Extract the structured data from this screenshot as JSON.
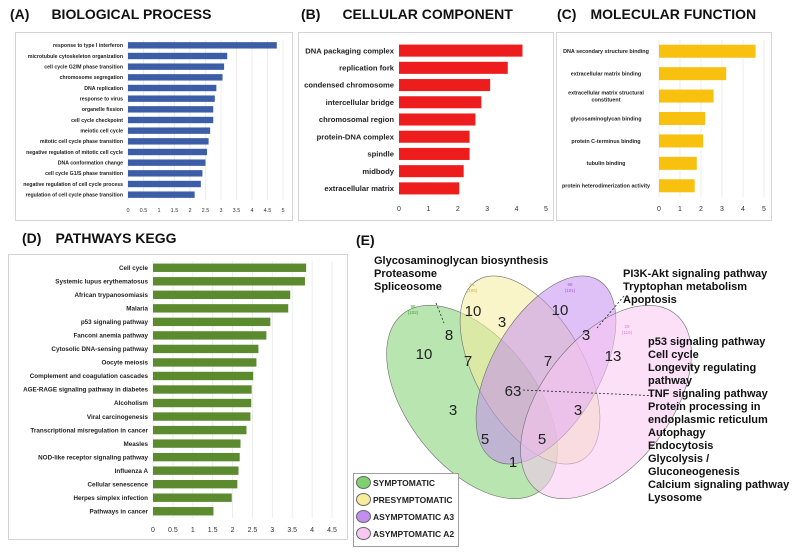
{
  "panels": {
    "a": {
      "tag": "(A)",
      "title": "BIOLOGICAL PROCESS"
    },
    "b": {
      "tag": "(B)",
      "title": "CELLULAR COMPONENT"
    },
    "c": {
      "tag": "(C)",
      "title": "MOLECULAR FUNCTION"
    },
    "d": {
      "tag": "(D)",
      "title": "PATHWAYS KEGG"
    },
    "e": {
      "tag": "(E)"
    }
  },
  "colors": {
    "bp_bar": "#3b5ea7",
    "cc_bar": "#ee1d1d",
    "mf_bar": "#f9c10f",
    "kegg_bar": "#5b8a2f"
  },
  "chart_data": [
    {
      "type": "bar",
      "orientation": "horizontal",
      "title": "BIOLOGICAL PROCESS",
      "categories": [
        "response to type I interferon",
        "microtubule cytoskeleton organization",
        "cell cycle G2/M phase transition",
        "chromosome segregation",
        "DNA replication",
        "response to virus",
        "organelle fission",
        "cell cycle checkpoint",
        "meiotic cell cycle",
        "mitotic cell cycle phase transition",
        "negative regulation of mitotic cell cycle",
        "DNA conformation change",
        "cell cycle G1/S phase transition",
        "negative regulation of cell cycle process",
        "regulation of cell cycle phase transition"
      ],
      "values": [
        4.8,
        3.2,
        3.1,
        3.05,
        2.85,
        2.8,
        2.75,
        2.75,
        2.65,
        2.6,
        2.55,
        2.5,
        2.4,
        2.35,
        2.15
      ],
      "xlim": [
        0,
        5
      ],
      "xticks": [
        "0",
        "0.5",
        "1",
        "1.5",
        "2",
        "2.5",
        "3",
        "3.5",
        "4",
        "4.5",
        "5"
      ],
      "grid": true
    },
    {
      "type": "bar",
      "orientation": "horizontal",
      "title": "CELLULAR COMPONENT",
      "categories": [
        "DNA packaging complex",
        "replication fork",
        "condensed chromosome",
        "intercellular bridge",
        "chromosomal region",
        "protein-DNA complex",
        "spindle",
        "midbody",
        "extracellular matrix"
      ],
      "values": [
        4.2,
        3.7,
        3.1,
        2.8,
        2.6,
        2.4,
        2.4,
        2.2,
        2.05
      ],
      "xlim": [
        0,
        5
      ],
      "xticks": [
        "0",
        "1",
        "2",
        "3",
        "4",
        "5"
      ],
      "grid": false
    },
    {
      "type": "bar",
      "orientation": "horizontal",
      "title": "MOLECULAR FUNCTION",
      "categories": [
        "DNA secondary structure binding",
        "extracellular matrix binding",
        "extracellular matrix structural constituent",
        "glycosaminoglycan binding",
        "protein C-terminus binding",
        "tubulin binding",
        "protein heterodimerization activity"
      ],
      "values": [
        4.6,
        3.2,
        2.6,
        2.2,
        2.1,
        1.8,
        1.7
      ],
      "xlim": [
        0,
        5
      ],
      "xticks": [
        "0",
        "1",
        "2",
        "3",
        "4",
        "5"
      ],
      "grid": true
    },
    {
      "type": "bar",
      "orientation": "horizontal",
      "title": "PATHWAYS KEGG",
      "categories": [
        "Cell cycle",
        "Systemic lupus erythematosus",
        "African trypanosomiasis",
        "Malaria",
        "p53 signaling pathway",
        "Fanconi anemia pathway",
        "Cytosolic DNA-sensing pathway",
        "Oocyte meiosis",
        "Complement and coagulation cascades",
        "AGE-RAGE signaling pathway in diabetes",
        "Alcoholism",
        "Viral carcinogenesis",
        "Transcriptional misregulation in cancer",
        "Measles",
        "NOD-like receptor signaling pathway",
        "Influenza A",
        "Cellular senescence",
        "Herpes simplex infection",
        "Pathways in cancer"
      ],
      "values": [
        3.85,
        3.82,
        3.45,
        3.4,
        2.95,
        2.85,
        2.65,
        2.6,
        2.52,
        2.48,
        2.47,
        2.45,
        2.35,
        2.2,
        2.18,
        2.15,
        2.12,
        1.98,
        1.52
      ],
      "xlim": [
        0,
        4.5
      ],
      "xticks": [
        "0",
        "0.5",
        "1",
        "1.5",
        "2",
        "2.5",
        "3",
        "3.5",
        "4",
        "4.5"
      ],
      "grid": true
    },
    {
      "type": "venn",
      "sets": [
        {
          "name": "SYMPTOMATIC",
          "small_label": "98",
          "small_total": "(102)",
          "color": "#7fd06f"
        },
        {
          "name": "PRESYMPTOMATIC",
          "small_label": "61",
          "small_total": "(105)",
          "color": "#f6ec9c"
        },
        {
          "name": "ASYMPTOMATIC A3",
          "small_label": "98",
          "small_total": "(101)",
          "color": "#c48ef0"
        },
        {
          "name": "ASYMPTOMATIC A2",
          "small_label": "29",
          "small_total": "(116)",
          "color": "#f7c6f2"
        }
      ],
      "region_counts": [
        "10",
        "10",
        "10",
        "13",
        "8",
        "3",
        "3",
        "7",
        "7",
        "63",
        "3",
        "3",
        "5",
        "5",
        "1"
      ]
    }
  ],
  "venn_annotations": {
    "left_top": [
      "Glycosaminoglycan biosynthesis",
      "Proteasome",
      "Spliceosome"
    ],
    "right_top": [
      "PI3K-Akt signaling pathway",
      "Tryptophan metabolism",
      "Apoptosis"
    ],
    "right_mid": [
      "p53 signaling pathway",
      "Cell cycle",
      "Longevity regulating",
      "pathway",
      "TNF signaling pathway",
      "Protein processing in",
      "endoplasmic reticulum",
      "Autophagy",
      "Endocytosis",
      "Glycolysis  /",
      "Gluconeogenesis",
      "Calcium signaling pathway",
      "Lysosome"
    ]
  }
}
